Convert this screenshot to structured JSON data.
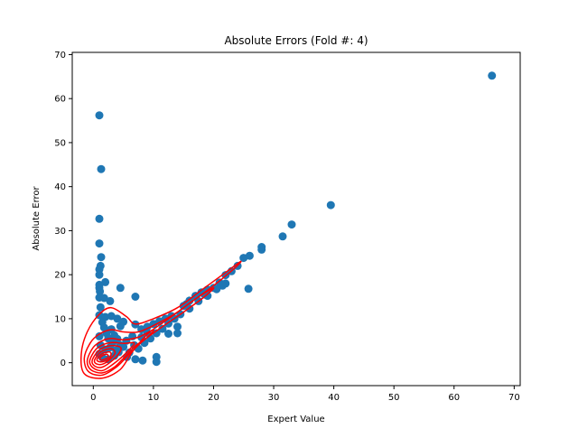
{
  "chart_data": {
    "type": "scatter",
    "title": "Absolute Errors (Fold #: 4)",
    "xlabel": "Expert Value",
    "ylabel": "Absolute Error",
    "xlim": [
      -3.5,
      71
    ],
    "ylim": [
      -5.2,
      70.5
    ],
    "xticks": [
      0,
      10,
      20,
      30,
      40,
      50,
      60,
      70
    ],
    "yticks": [
      0,
      10,
      20,
      30,
      40,
      50,
      60,
      70
    ],
    "xtick_labels": [
      "0",
      "10",
      "20",
      "30",
      "40",
      "50",
      "60",
      "70"
    ],
    "ytick_labels": [
      "0",
      "10",
      "20",
      "30",
      "40",
      "50",
      "60",
      "70"
    ],
    "grid": false,
    "colors": {
      "points": "#1f77b4",
      "density": "#ff0000"
    },
    "series": [
      {
        "kind": "scatter",
        "points": [
          [
            1.0,
            56.2
          ],
          [
            1.3,
            44.0
          ],
          [
            1.0,
            32.7
          ],
          [
            1.0,
            27.1
          ],
          [
            1.3,
            24.0
          ],
          [
            1.2,
            22.0
          ],
          [
            1.0,
            21.2
          ],
          [
            1.0,
            20.0
          ],
          [
            1.0,
            17.7
          ],
          [
            2.0,
            18.3
          ],
          [
            1.0,
            17.0
          ],
          [
            1.1,
            16.2
          ],
          [
            1.0,
            14.8
          ],
          [
            1.8,
            14.7
          ],
          [
            2.8,
            14.0
          ],
          [
            1.2,
            12.6
          ],
          [
            1.0,
            10.8
          ],
          [
            2.0,
            10.4
          ],
          [
            3.0,
            10.6
          ],
          [
            4.0,
            10.0
          ],
          [
            4.5,
            17.0
          ],
          [
            7.0,
            15.0
          ],
          [
            3.0,
            7.6
          ],
          [
            4.5,
            8.3
          ],
          [
            5.0,
            9.3
          ],
          [
            7.0,
            8.7
          ],
          [
            8.0,
            7.6
          ],
          [
            9.0,
            8.2
          ],
          [
            10.0,
            8.8
          ],
          [
            11.0,
            9.4
          ],
          [
            12.0,
            10.0
          ],
          [
            13.0,
            10.6
          ],
          [
            12.5,
            6.6
          ],
          [
            14.0,
            6.7
          ],
          [
            14.0,
            8.2
          ],
          [
            15.0,
            12.9
          ],
          [
            16.0,
            14.1
          ],
          [
            17.0,
            15.2
          ],
          [
            18.0,
            16.0
          ],
          [
            19.0,
            16.6
          ],
          [
            20.0,
            17.0
          ],
          [
            21.0,
            18.2
          ],
          [
            22.0,
            18.0
          ],
          [
            22.0,
            19.9
          ],
          [
            23.0,
            20.8
          ],
          [
            24.0,
            22.0
          ],
          [
            25.0,
            23.8
          ],
          [
            26.0,
            24.3
          ],
          [
            25.8,
            16.8
          ],
          [
            28.0,
            25.7
          ],
          [
            28.0,
            26.3
          ],
          [
            31.5,
            28.7
          ],
          [
            33.0,
            31.4
          ],
          [
            39.5,
            35.8
          ],
          [
            66.3,
            65.2
          ],
          [
            10.5,
            0.2
          ],
          [
            10.5,
            1.3
          ],
          [
            8.2,
            0.5
          ],
          [
            7.0,
            0.8
          ],
          [
            5.6,
            1.3
          ],
          [
            6.0,
            2.3
          ],
          [
            7.5,
            3.2
          ],
          [
            8.5,
            4.5
          ],
          [
            9.5,
            5.5
          ],
          [
            10.5,
            6.7
          ],
          [
            11.5,
            7.7
          ],
          [
            12.5,
            8.9
          ],
          [
            13.5,
            10.0
          ],
          [
            14.5,
            11.0
          ],
          [
            16.0,
            12.3
          ],
          [
            17.5,
            14.0
          ],
          [
            19.0,
            15.2
          ],
          [
            20.5,
            16.7
          ],
          [
            1.5,
            9.2
          ],
          [
            1.8,
            8.0
          ],
          [
            2.2,
            6.7
          ],
          [
            2.5,
            5.5
          ],
          [
            3.2,
            4.5
          ],
          [
            3.5,
            6.2
          ],
          [
            4.0,
            5.4
          ],
          [
            4.5,
            4.0
          ],
          [
            5.0,
            3.6
          ],
          [
            5.5,
            5.0
          ],
          [
            6.5,
            6.0
          ],
          [
            2.0,
            3.0
          ],
          [
            1.0,
            2.0
          ],
          [
            1.5,
            1.2
          ],
          [
            2.5,
            0.8
          ],
          [
            3.5,
            1.6
          ],
          [
            4.2,
            2.4
          ],
          [
            1.0,
            6.0
          ],
          [
            1.2,
            4.0
          ],
          [
            2.8,
            3.5
          ],
          [
            3.8,
            2.8
          ],
          [
            6.8,
            4.0
          ],
          [
            8.0,
            5.8
          ],
          [
            9.0,
            6.8
          ],
          [
            15.5,
            13.3
          ],
          [
            18.5,
            15.5
          ],
          [
            21.5,
            17.5
          ]
        ]
      },
      {
        "kind": "density-contours",
        "contours": [
          [
            [
              -2.0,
              2
            ],
            [
              -1.0,
              7
            ],
            [
              1.0,
              11
            ],
            [
              3.0,
              12.5
            ],
            [
              5.5,
              10.5
            ],
            [
              7.0,
              8.8
            ],
            [
              10.0,
              10.0
            ],
            [
              14.0,
              12.5
            ],
            [
              18.0,
              16.5
            ],
            [
              22.0,
              20.5
            ],
            [
              24.5,
              23.0
            ],
            [
              23.5,
              21.5
            ],
            [
              20.0,
              17.5
            ],
            [
              16.0,
              13.5
            ],
            [
              12.0,
              9.5
            ],
            [
              9.0,
              6.5
            ],
            [
              6.5,
              2.5
            ],
            [
              4.5,
              -1.5
            ],
            [
              1.5,
              -3.5
            ],
            [
              -1.5,
              -2.5
            ]
          ],
          [
            [
              -1.5,
              1
            ],
            [
              -0.5,
              4.5
            ],
            [
              1.0,
              6.5
            ],
            [
              3.0,
              7.5
            ],
            [
              5.0,
              7.0
            ],
            [
              7.5,
              7.0
            ],
            [
              10.5,
              8.8
            ],
            [
              14.0,
              11.5
            ],
            [
              17.0,
              14.5
            ],
            [
              20.0,
              17.0
            ],
            [
              18.5,
              15.0
            ],
            [
              15.0,
              11.5
            ],
            [
              11.5,
              8.2
            ],
            [
              8.5,
              5.2
            ],
            [
              6.0,
              2.0
            ],
            [
              4.0,
              -0.8
            ],
            [
              1.5,
              -2.8
            ],
            [
              -0.8,
              -2.0
            ]
          ],
          [
            [
              -1.0,
              0.5
            ],
            [
              0.0,
              3.5
            ],
            [
              1.5,
              5.0
            ],
            [
              3.0,
              5.5
            ],
            [
              5.0,
              5.2
            ],
            [
              7.5,
              5.8
            ],
            [
              10.0,
              7.5
            ],
            [
              9.0,
              5.8
            ],
            [
              7.0,
              3.8
            ],
            [
              5.0,
              1.0
            ],
            [
              3.5,
              -1.0
            ],
            [
              1.5,
              -2.3
            ],
            [
              -0.4,
              -1.6
            ]
          ],
          [
            [
              -0.6,
              0.4
            ],
            [
              0.4,
              3.0
            ],
            [
              1.8,
              4.2
            ],
            [
              3.2,
              4.6
            ],
            [
              5.0,
              4.4
            ],
            [
              6.8,
              4.5
            ],
            [
              6.0,
              3.0
            ],
            [
              4.5,
              1.0
            ],
            [
              3.0,
              -0.6
            ],
            [
              1.5,
              -1.8
            ],
            [
              0.0,
              -1.2
            ]
          ],
          [
            [
              -0.2,
              0.4
            ],
            [
              0.7,
              2.5
            ],
            [
              2.0,
              3.6
            ],
            [
              3.3,
              3.9
            ],
            [
              4.6,
              3.4
            ],
            [
              4.2,
              2.0
            ],
            [
              3.0,
              0.3
            ],
            [
              1.5,
              -1.0
            ],
            [
              0.3,
              -0.8
            ]
          ],
          [
            [
              0.2,
              0.5
            ],
            [
              1.0,
              2.2
            ],
            [
              2.1,
              3.0
            ],
            [
              3.2,
              3.1
            ],
            [
              3.6,
              2.2
            ],
            [
              2.8,
              0.8
            ],
            [
              1.6,
              -0.3
            ],
            [
              0.6,
              -0.3
            ]
          ],
          [
            [
              0.6,
              0.7
            ],
            [
              1.3,
              1.9
            ],
            [
              2.2,
              2.4
            ],
            [
              2.9,
              2.3
            ],
            [
              2.8,
              1.2
            ],
            [
              2.0,
              0.4
            ],
            [
              1.1,
              0.2
            ]
          ],
          [
            [
              1.1,
              1.0
            ],
            [
              1.6,
              1.7
            ],
            [
              2.3,
              1.9
            ],
            [
              2.5,
              1.3
            ],
            [
              1.9,
              0.8
            ],
            [
              1.3,
              0.6
            ]
          ]
        ]
      }
    ]
  }
}
